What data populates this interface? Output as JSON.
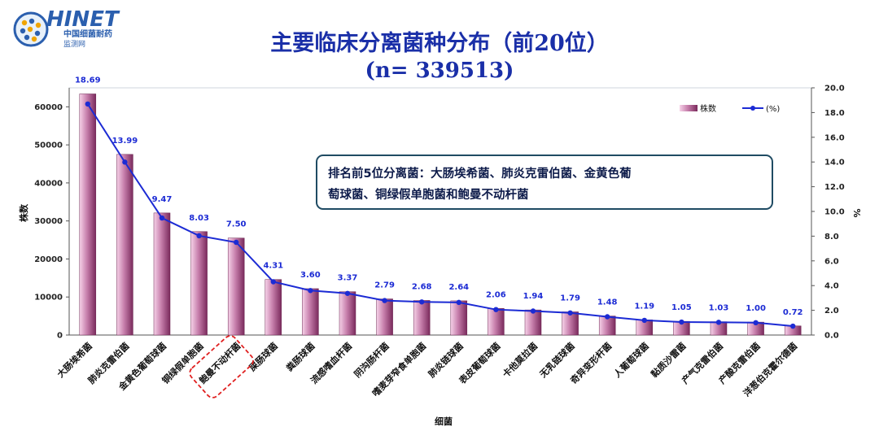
{
  "logo": {
    "name": "HINET",
    "subtitle_line1": "中国细菌耐药",
    "subtitle_line2": "监测网"
  },
  "note": {
    "line1": "排名前5位分离菌：大肠埃希菌、肺炎克雷伯菌、金黄色葡",
    "line2": "萄球菌、铜绿假单胞菌和鲍曼不动杆菌"
  },
  "highlight_category": "鲍曼不动杆菌",
  "colors": {
    "title": "#1a2fa8",
    "bar_light": "#f6d2e8",
    "bar_dark": "#7a2a5c",
    "line": "#1c2bd4",
    "frame": "#1f4b63",
    "highlight": "#e02020"
  },
  "chart_data": {
    "type": "bar",
    "title": "主要临床分离菌种分布（前20位）",
    "subtitle": "(n= 339513)",
    "xlabel": "细菌",
    "ylabel": "株数",
    "y2label": "%",
    "ylim": [
      0,
      65000
    ],
    "y2lim": [
      0,
      20
    ],
    "yticks": [
      0,
      10000,
      20000,
      30000,
      40000,
      50000,
      60000
    ],
    "y2ticks": [
      "0.0",
      "2.0",
      "4.0",
      "6.0",
      "8.0",
      "10.0",
      "12.0",
      "14.0",
      "16.0",
      "18.0",
      "20.0"
    ],
    "legend_position": "top-right",
    "categories": [
      "大肠埃希菌",
      "肺炎克雷伯菌",
      "金黄色葡萄球菌",
      "铜绿假单胞菌",
      "鲍曼不动杆菌",
      "屎肠球菌",
      "粪肠球菌",
      "流感嗜血杆菌",
      "阴沟肠杆菌",
      "嗜麦芽窄食单胞菌",
      "肺炎链球菌",
      "表皮葡萄球菌",
      "卡他莫拉菌",
      "无乳链球菌",
      "奇异变形杆菌",
      "人葡萄球菌",
      "黏质沙雷菌",
      "产气克雷伯菌",
      "产酸克雷伯菌",
      "洋葱伯克霍尔德菌"
    ],
    "series": [
      {
        "name": "株数",
        "type": "bar",
        "values": [
          63400,
          47500,
          32100,
          27200,
          25500,
          14600,
          12200,
          11400,
          9500,
          9100,
          9000,
          7000,
          6600,
          6100,
          5000,
          4000,
          3600,
          3500,
          3400,
          2400
        ]
      },
      {
        "name": "(%)",
        "type": "line",
        "axis": "right",
        "values": [
          18.69,
          13.99,
          9.47,
          8.03,
          7.5,
          4.31,
          3.6,
          3.37,
          2.79,
          2.68,
          2.64,
          2.06,
          1.94,
          1.79,
          1.48,
          1.19,
          1.05,
          1.03,
          1.0,
          0.72
        ],
        "labels": [
          "18.69",
          "13.99",
          "9.47",
          "8.03",
          "7.50",
          "4.31",
          "3.60",
          "3.37",
          "2.79",
          "2.68",
          "2.64",
          "2.06",
          "1.94",
          "1.79",
          "1.48",
          "1.19",
          "1.05",
          "1.03",
          "1.00",
          "0.72"
        ]
      }
    ]
  }
}
